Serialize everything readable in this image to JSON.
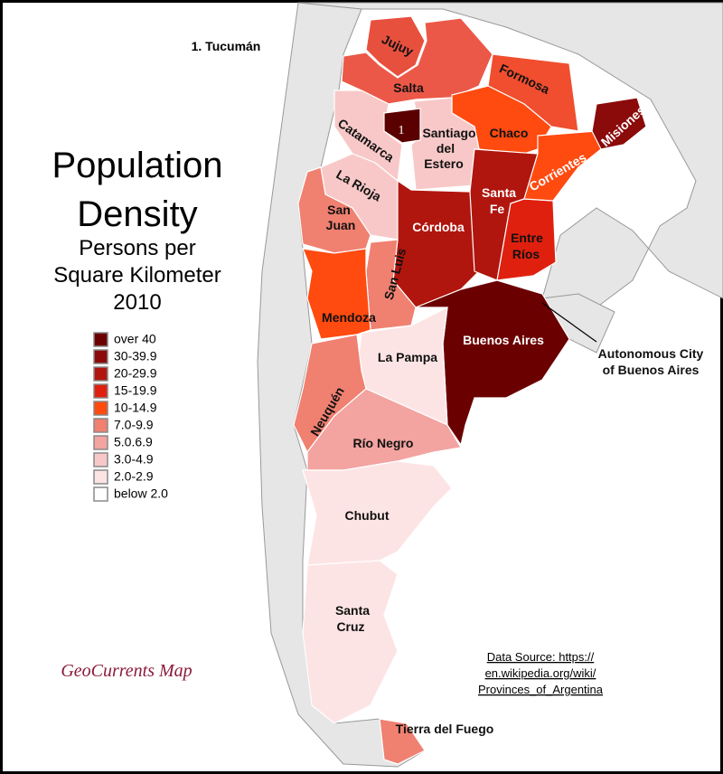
{
  "title": [
    "Population",
    "Density"
  ],
  "subtitle": [
    "Persons per",
    "Square Kilometer",
    "2010"
  ],
  "note": "1. Tucumán",
  "legend": [
    {
      "label": "over 40",
      "color": "#6b0000"
    },
    {
      "label": "30-39.9",
      "color": "#8b0a0a"
    },
    {
      "label": "20-29.9",
      "color": "#b0160e"
    },
    {
      "label": "15-19.9",
      "color": "#e0200e"
    },
    {
      "label": "10-14.9",
      "color": "#ff4a10"
    },
    {
      "label": "7.0-9.9",
      "color": "#f08070"
    },
    {
      "label": "5.0.6.9",
      "color": "#f3a3a0"
    },
    {
      "label": "3.0-4.9",
      "color": "#f8c8c8"
    },
    {
      "label": "2.0-2.9",
      "color": "#fde4e4"
    },
    {
      "label": "below 2.0",
      "color": "#ffffff"
    }
  ],
  "provinces": [
    {
      "label": [
        "Jujuy"
      ],
      "color": "#e8503e"
    },
    {
      "label": [
        "Salta"
      ],
      "color": "#ec5848"
    },
    {
      "label": [
        "Formosa"
      ],
      "color": "#f04e2e"
    },
    {
      "label": [
        "Chaco"
      ],
      "color": "#ff4a10"
    },
    {
      "label": [
        "1"
      ],
      "color": "#5a0000"
    },
    {
      "label": [
        "Catamarca"
      ],
      "color": "#f8c8c8"
    },
    {
      "label": [
        "Santiago",
        "del",
        "Estero"
      ],
      "color": "#f8c8c8"
    },
    {
      "label": [
        "La Rioja"
      ],
      "color": "#f8c8c8"
    },
    {
      "label": [
        "San",
        "Juan"
      ],
      "color": "#f08070"
    },
    {
      "label": [
        "Córdoba"
      ],
      "color": "#b0160e"
    },
    {
      "label": [
        "Santa",
        "Fe"
      ],
      "color": "#b0160e"
    },
    {
      "label": [
        "Entre",
        "Ríos"
      ],
      "color": "#e0200e"
    },
    {
      "label": [
        "Corrientes"
      ],
      "color": "#ff4a10"
    },
    {
      "label": [
        "Misiones"
      ],
      "color": "#8b0a0a"
    },
    {
      "label": [
        "San Luis"
      ],
      "color": "#f08070"
    },
    {
      "label": [
        "Mendoza"
      ],
      "color": "#ff4a10"
    },
    {
      "label": [
        "Buenos Aires"
      ],
      "color": "#6b0000"
    },
    {
      "label": [
        "La Pampa"
      ],
      "color": "#fde4e4"
    },
    {
      "label": [
        "Neuquén"
      ],
      "color": "#f08070"
    },
    {
      "label": [
        "Río Negro"
      ],
      "color": "#f3a3a0"
    },
    {
      "label": [
        "Chubut"
      ],
      "color": "#fde4e4"
    },
    {
      "label": [
        "Santa",
        "Cruz"
      ],
      "color": "#fde4e4"
    },
    {
      "label": [
        "Tierra del Fuego"
      ],
      "color": "#f08070"
    }
  ],
  "callout": [
    "Autonomous City",
    "of Buenos Aires"
  ],
  "credit": "GeoCurrents Map",
  "source": [
    "Data Source: https://",
    "en.wikipedia.org/wiki/",
    "Provinces_of_Argentina"
  ]
}
